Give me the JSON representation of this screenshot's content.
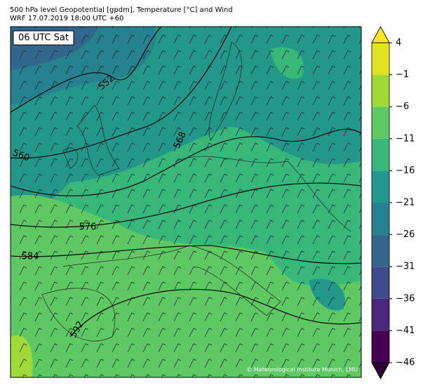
{
  "header": {
    "line1": "500 hPa level Geopotential [gpdm], Temperature [°C] and Wind",
    "line2": "WRF 17.07.2019 18:00 UTC +60"
  },
  "map": {
    "time_label": "06 UTC Sat",
    "contour_labels": [
      "552",
      "560",
      "568",
      "576",
      "584",
      "592"
    ],
    "credit": "© Meteorological Institute Munich, LMU"
  },
  "colorbar": {
    "ticks": [
      4,
      {
        "value": -1,
        "label": "−1"
      },
      {
        "value": -6,
        "label": "−6"
      },
      {
        "value": -11,
        "label": "−11"
      },
      {
        "value": -16,
        "label": "−16"
      },
      {
        "value": -21,
        "label": "−21"
      },
      {
        "value": -26,
        "label": "−26"
      },
      {
        "value": -31,
        "label": "−31"
      },
      {
        "value": -36,
        "label": "−36"
      },
      {
        "value": -41,
        "label": "−41"
      },
      {
        "value": -46,
        "label": "−46"
      }
    ],
    "colors": [
      "#e2e31f",
      "#a0da39",
      "#5ec962",
      "#38b77a",
      "#22978a",
      "#26828e",
      "#33668d",
      "#3e4a89",
      "#482878",
      "#440154"
    ],
    "over_color": "#fde725",
    "under_color": "#2d0036"
  }
}
